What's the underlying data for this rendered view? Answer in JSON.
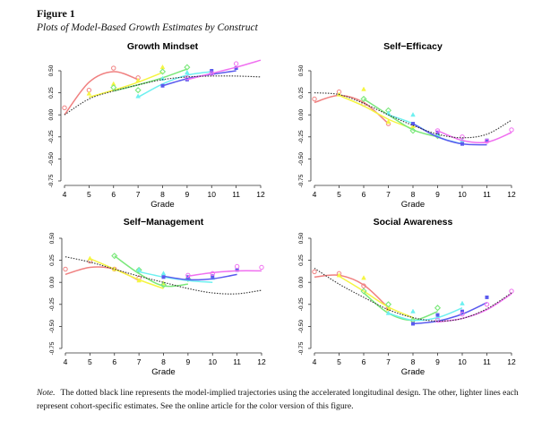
{
  "figure": {
    "label": "Figure 1",
    "caption": "Plots of Model-Based Growth Estimates by Construct",
    "note_label": "Note.",
    "note_text": "The dotted black line represents the model-implied trajectories using the accelerated longitudinal design. The other, lighter lines each represent cohort-specific estimates. See the online article for the color version of this figure."
  },
  "chart_data": [
    {
      "type": "line",
      "title": "Growth Mindset",
      "xlabel": "Grade",
      "ylabel": "",
      "xlim": [
        4,
        12
      ],
      "ylim": [
        -0.75,
        0.5
      ],
      "xticks": [
        "4",
        "5",
        "6",
        "7",
        "8",
        "9",
        "10",
        "11",
        "12"
      ],
      "yticks": [
        "-0.75",
        "-0.50",
        "-0.25",
        "0.00",
        "0.25",
        "0.50"
      ],
      "grid": false,
      "model": {
        "style": "dotted",
        "color": "#333333",
        "x": [
          4,
          5,
          6,
          7,
          8,
          9,
          10,
          11,
          12
        ],
        "y": [
          0.0,
          0.18,
          0.27,
          0.34,
          0.4,
          0.43,
          0.44,
          0.44,
          0.43
        ]
      },
      "cohorts": [
        {
          "color": "#f08080",
          "marker": "circle",
          "x": [
            4,
            5,
            6,
            7
          ],
          "points": [
            0.08,
            0.28,
            0.53,
            0.42
          ],
          "fit": [
            0.0,
            0.37,
            0.49,
            0.4
          ]
        },
        {
          "color": "#f5f542",
          "marker": "triangle",
          "x": [
            5,
            6,
            7,
            8
          ],
          "points": [
            0.24,
            0.35,
            0.39,
            0.54
          ],
          "fit": [
            0.2,
            0.28,
            0.37,
            0.48
          ]
        },
        {
          "color": "#7ae87a",
          "marker": "diamond",
          "x": [
            6,
            7,
            8,
            9
          ],
          "points": [
            0.31,
            0.28,
            0.49,
            0.54
          ],
          "fit": [
            0.27,
            0.34,
            0.42,
            0.52
          ]
        },
        {
          "color": "#6ef0f0",
          "marker": "triangle",
          "x": [
            7,
            8,
            9,
            10
          ],
          "points": [
            0.21,
            0.41,
            0.48,
            0.48
          ],
          "fit": [
            0.2,
            0.35,
            0.45,
            0.49
          ]
        },
        {
          "color": "#5a5aee",
          "marker": "square",
          "x": [
            8,
            9,
            10,
            11
          ],
          "points": [
            0.33,
            0.4,
            0.5,
            0.53
          ],
          "fit": [
            0.33,
            0.41,
            0.46,
            0.5
          ]
        },
        {
          "color": "#f070f0",
          "marker": "circle",
          "x": [
            9,
            10,
            11,
            12
          ],
          "points": [
            0.42,
            0.47,
            0.58,
            null
          ],
          "fit": [
            0.4,
            0.47,
            0.54,
            0.62
          ]
        }
      ]
    },
    {
      "type": "line",
      "title": "Self−Efficacy",
      "xlabel": "Grade",
      "ylabel": "",
      "xlim": [
        4,
        12
      ],
      "ylim": [
        -0.75,
        0.5
      ],
      "xticks": [
        "4",
        "5",
        "6",
        "7",
        "8",
        "9",
        "10",
        "11",
        "12"
      ],
      "yticks": [
        "-0.75",
        "-0.50",
        "-0.25",
        "0.00",
        "0.25",
        "0.50"
      ],
      "grid": false,
      "model": {
        "style": "dotted",
        "color": "#333333",
        "x": [
          4,
          5,
          6,
          7,
          8,
          9,
          10,
          11,
          12
        ],
        "y": [
          0.25,
          0.23,
          0.13,
          0.0,
          -0.12,
          -0.22,
          -0.26,
          -0.22,
          -0.06
        ]
      },
      "cohorts": [
        {
          "color": "#f08080",
          "marker": "circle",
          "x": [
            4,
            5,
            6,
            7
          ],
          "points": [
            0.18,
            0.26,
            0.12,
            -0.1
          ],
          "fit": [
            0.14,
            0.22,
            0.14,
            -0.1
          ]
        },
        {
          "color": "#f5f542",
          "marker": "triangle",
          "x": [
            5,
            6,
            7,
            8
          ],
          "points": [
            0.23,
            0.29,
            -0.08,
            -0.13
          ],
          "fit": [
            0.22,
            0.1,
            -0.05,
            -0.16
          ]
        },
        {
          "color": "#7ae87a",
          "marker": "diamond",
          "x": [
            6,
            7,
            8,
            9
          ],
          "points": [
            0.18,
            0.05,
            -0.18,
            -0.24
          ],
          "fit": [
            0.18,
            0.0,
            -0.17,
            -0.25
          ]
        },
        {
          "color": "#6ef0f0",
          "marker": "triangle",
          "x": [
            7,
            8,
            9,
            10
          ],
          "points": [
            0.02,
            0.0,
            -0.23,
            -0.29
          ],
          "fit": [
            0.0,
            -0.1,
            -0.25,
            -0.33
          ]
        },
        {
          "color": "#5a5aee",
          "marker": "square",
          "x": [
            8,
            9,
            10,
            11
          ],
          "points": [
            -0.1,
            -0.2,
            -0.33,
            -0.29
          ],
          "fit": [
            -0.1,
            -0.25,
            -0.33,
            -0.34
          ]
        },
        {
          "color": "#f070f0",
          "marker": "circle",
          "x": [
            9,
            10,
            11,
            12
          ],
          "points": [
            -0.18,
            -0.25,
            -0.3,
            -0.17
          ],
          "fit": [
            -0.18,
            -0.29,
            -0.31,
            -0.2
          ]
        }
      ]
    },
    {
      "type": "line",
      "title": "Self−Management",
      "xlabel": "Grade",
      "ylabel": "",
      "xlim": [
        4,
        12
      ],
      "ylim": [
        -0.75,
        0.5
      ],
      "xticks": [
        "4",
        "5",
        "6",
        "7",
        "8",
        "9",
        "10",
        "11",
        "12"
      ],
      "yticks": [
        "-0.75",
        "-0.50",
        "-0.25",
        "0.00",
        "0.25",
        "0.50"
      ],
      "grid": false,
      "model": {
        "style": "dotted",
        "color": "#333333",
        "x": [
          4,
          5,
          6,
          7,
          8,
          9,
          10,
          11,
          12
        ],
        "y": [
          0.29,
          0.23,
          0.15,
          0.07,
          0.0,
          -0.07,
          -0.12,
          -0.13,
          -0.09
        ]
      },
      "cohorts": [
        {
          "color": "#f08080",
          "marker": "circle",
          "x": [
            4,
            5,
            6,
            7
          ],
          "points": [
            0.15,
            0.24,
            0.15,
            0.05
          ],
          "fit": [
            0.09,
            0.17,
            0.15,
            0.02
          ]
        },
        {
          "color": "#f5f542",
          "marker": "triangle",
          "x": [
            5,
            6,
            7,
            8
          ],
          "points": [
            0.27,
            0.15,
            0.02,
            -0.01
          ],
          "fit": [
            0.27,
            0.15,
            0.03,
            -0.07
          ]
        },
        {
          "color": "#7ae87a",
          "marker": "diamond",
          "x": [
            6,
            7,
            8,
            9
          ],
          "points": [
            0.3,
            0.14,
            -0.03,
            0.04
          ],
          "fit": [
            0.3,
            0.1,
            -0.04,
            -0.02
          ]
        },
        {
          "color": "#6ef0f0",
          "marker": "triangle",
          "x": [
            7,
            8,
            9,
            10
          ],
          "points": [
            0.14,
            0.1,
            0.06,
            0.05
          ],
          "fit": [
            0.12,
            0.06,
            0.02,
            0.0
          ]
        },
        {
          "color": "#5a5aee",
          "marker": "square",
          "x": [
            8,
            9,
            10,
            11
          ],
          "points": [
            0.06,
            0.06,
            0.07,
            0.14
          ],
          "fit": [
            0.07,
            0.03,
            0.04,
            0.09
          ]
        },
        {
          "color": "#f070f0",
          "marker": "circle",
          "x": [
            9,
            10,
            11,
            12
          ],
          "points": [
            0.08,
            0.1,
            0.18,
            0.17
          ],
          "fit": [
            0.07,
            0.11,
            0.13,
            0.13
          ]
        }
      ]
    },
    {
      "type": "line",
      "title": "Social Awareness",
      "xlabel": "Grade",
      "ylabel": "",
      "xlim": [
        4,
        12
      ],
      "ylim": [
        -0.75,
        0.5
      ],
      "xticks": [
        "4",
        "5",
        "6",
        "7",
        "8",
        "9",
        "10",
        "11",
        "12"
      ],
      "yticks": [
        "-0.75",
        "-0.50",
        "-0.25",
        "0.00",
        "0.25",
        "0.50"
      ],
      "grid": false,
      "model": {
        "style": "dotted",
        "color": "#333333",
        "x": [
          4,
          5,
          6,
          7,
          8,
          9,
          10,
          11,
          12
        ],
        "y": [
          0.16,
          -0.02,
          -0.17,
          -0.31,
          -0.4,
          -0.44,
          -0.41,
          -0.3,
          -0.12
        ]
      },
      "cohorts": [
        {
          "color": "#f08080",
          "marker": "circle",
          "x": [
            4,
            5,
            6,
            7
          ],
          "points": [
            0.12,
            0.1,
            -0.04,
            -0.3
          ],
          "fit": [
            0.06,
            0.08,
            -0.03,
            -0.29
          ]
        },
        {
          "color": "#f5f542",
          "marker": "triangle",
          "x": [
            5,
            6,
            7,
            8
          ],
          "points": [
            0.08,
            0.05,
            -0.3,
            -0.42
          ],
          "fit": [
            0.07,
            -0.1,
            -0.28,
            -0.4
          ]
        },
        {
          "color": "#7ae87a",
          "marker": "diamond",
          "x": [
            6,
            7,
            8,
            9
          ],
          "points": [
            -0.1,
            -0.25,
            -0.43,
            -0.29
          ],
          "fit": [
            -0.12,
            -0.35,
            -0.43,
            -0.33
          ]
        },
        {
          "color": "#6ef0f0",
          "marker": "triangle",
          "x": [
            7,
            8,
            9,
            10
          ],
          "points": [
            -0.35,
            -0.33,
            -0.4,
            -0.24
          ],
          "fit": [
            -0.35,
            -0.43,
            -0.4,
            -0.29
          ]
        },
        {
          "color": "#5a5aee",
          "marker": "square",
          "x": [
            8,
            9,
            10,
            11
          ],
          "points": [
            -0.47,
            -0.37,
            -0.33,
            -0.17
          ],
          "fit": [
            -0.47,
            -0.44,
            -0.36,
            -0.23
          ]
        },
        {
          "color": "#f070f0",
          "marker": "circle",
          "x": [
            9,
            10,
            11,
            12
          ],
          "points": [
            -0.43,
            -0.36,
            -0.25,
            -0.1
          ],
          "fit": [
            -0.45,
            -0.41,
            -0.31,
            -0.13
          ]
        }
      ]
    }
  ]
}
